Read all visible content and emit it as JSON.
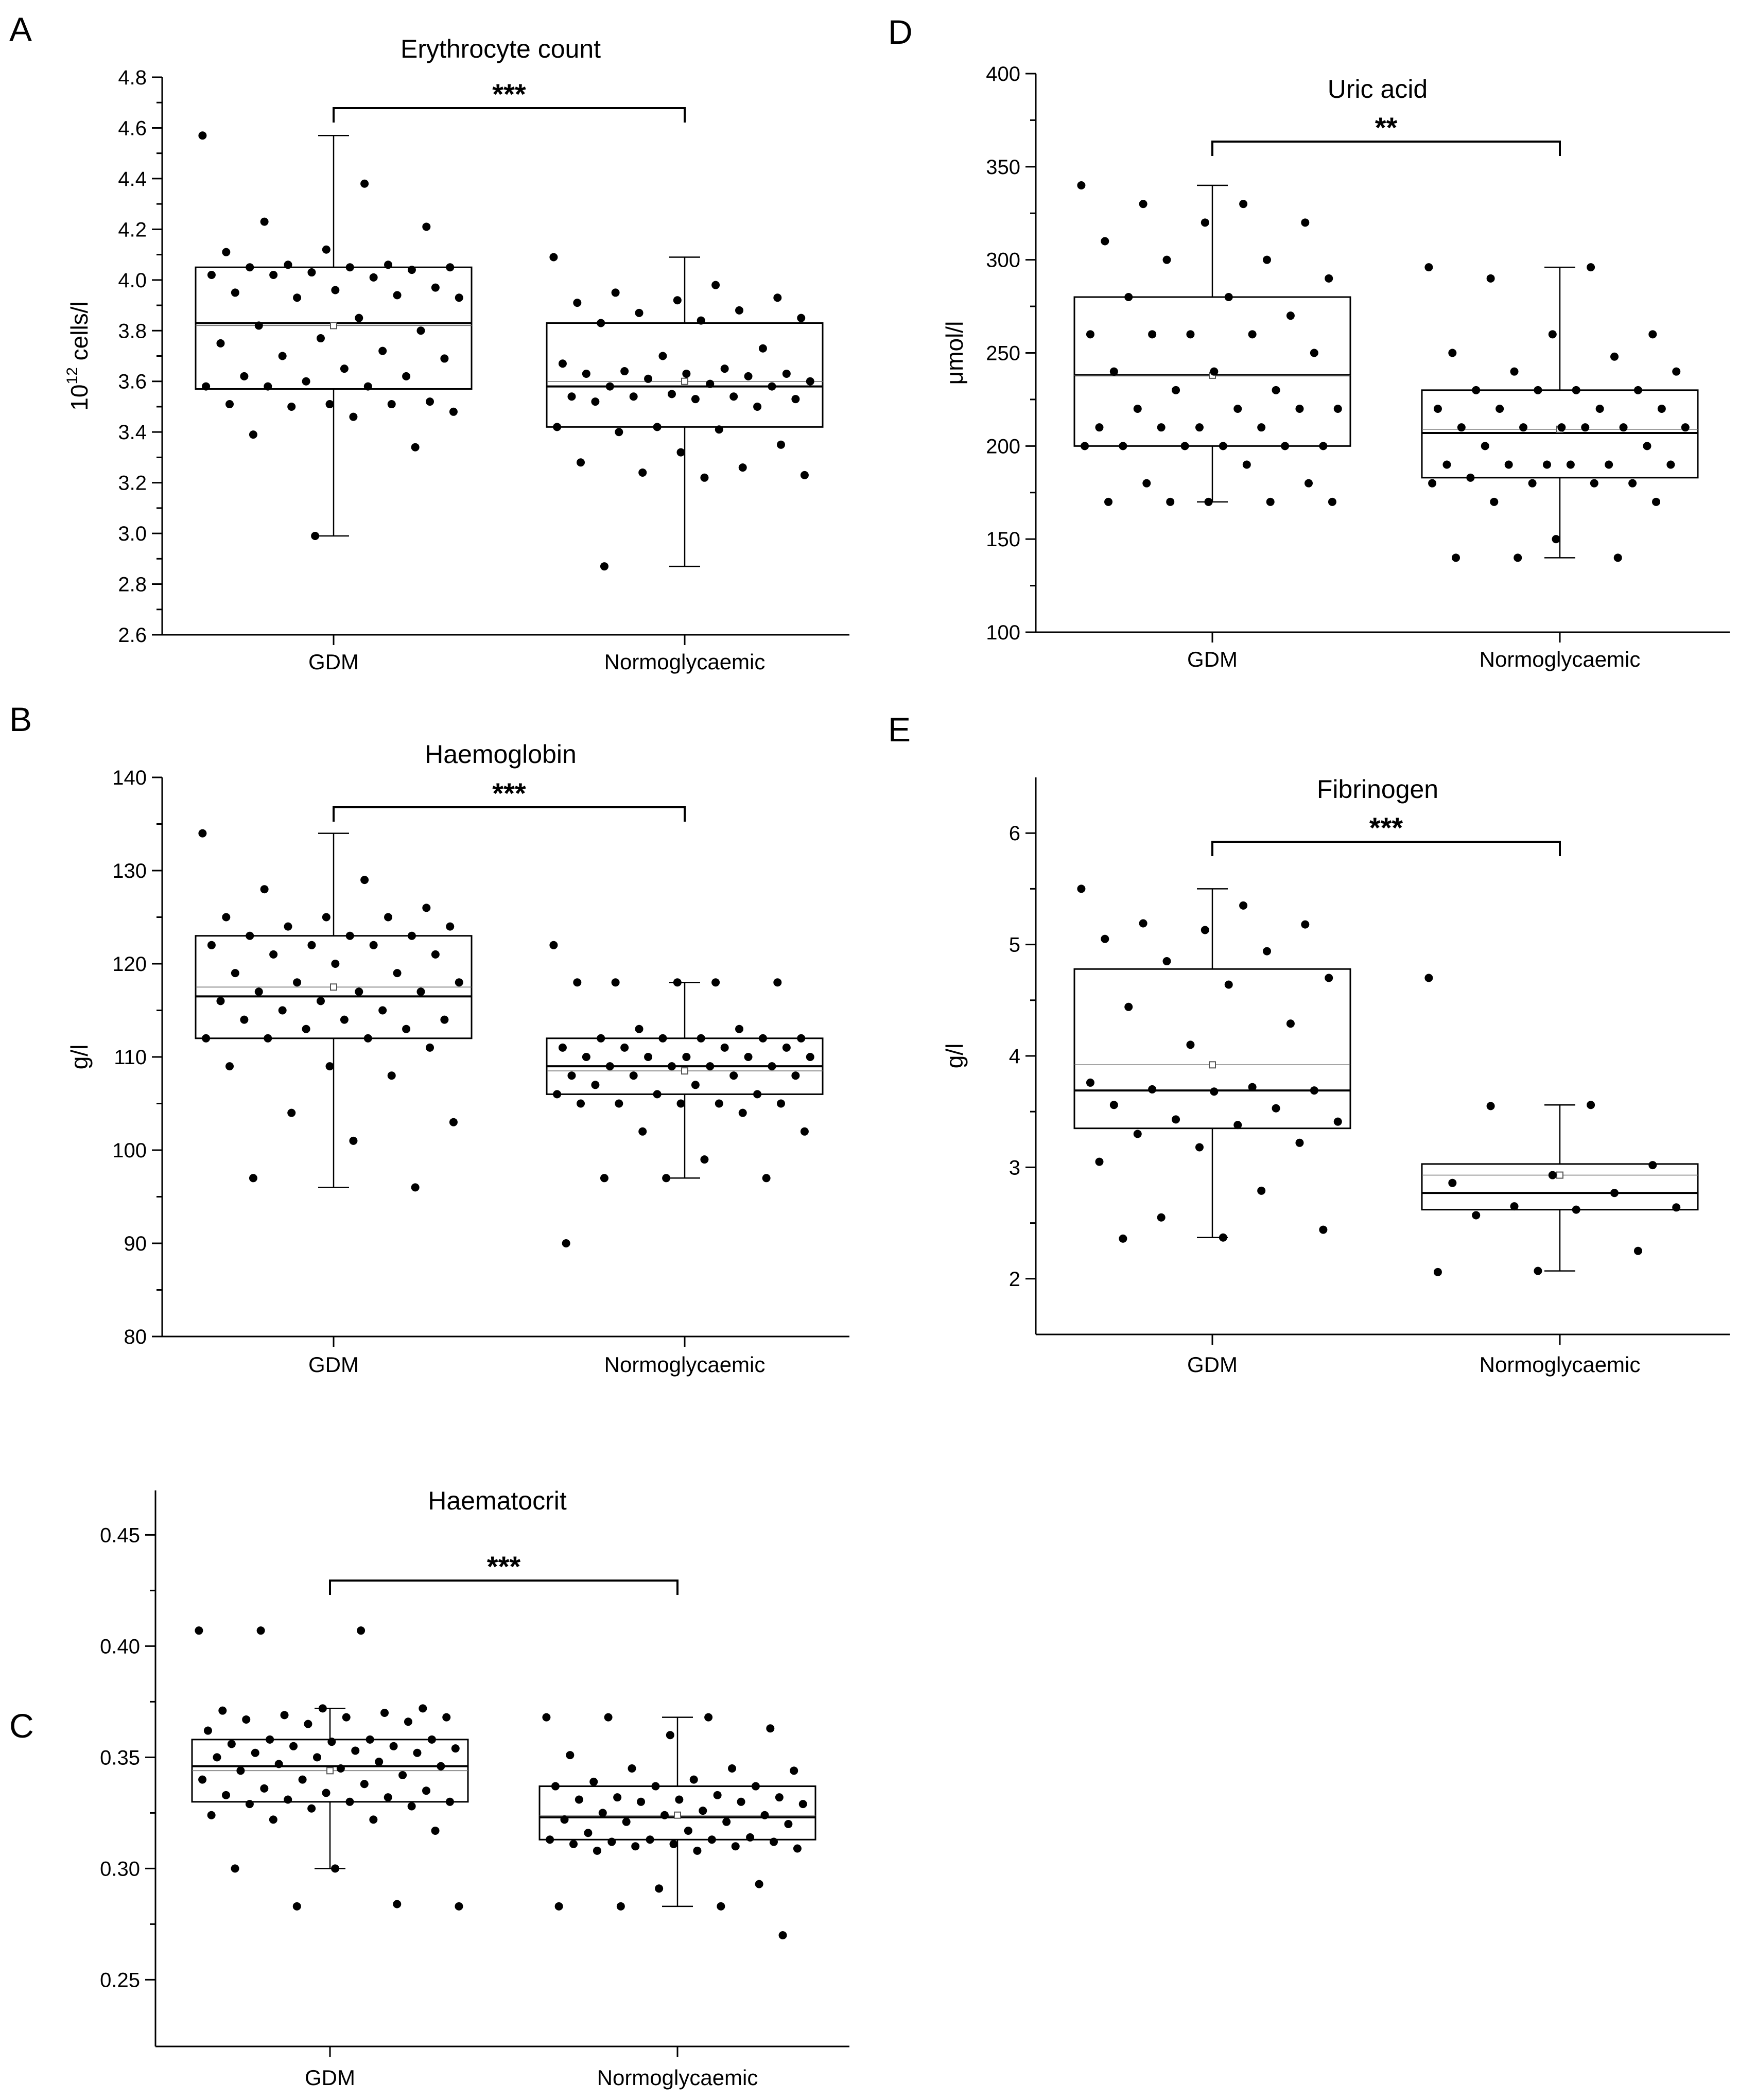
{
  "chart_data": [
    {
      "panel": "A",
      "type": "box",
      "title": "Erythrocyte count",
      "ylabel": "10¹² cells/l",
      "ylim": [
        2.6,
        4.8
      ],
      "yticks": [
        "2.6",
        "2.8",
        "3.0",
        "3.2",
        "3.4",
        "3.6",
        "3.8",
        "4.0",
        "4.2",
        "4.4",
        "4.6",
        "4.8"
      ],
      "categories": [
        "GDM",
        "Normoglycaemic"
      ],
      "significance": "***",
      "boxes": [
        {
          "q1": 3.57,
          "median": 3.83,
          "q3": 4.05,
          "mean": 3.82,
          "whisker_low": 2.99,
          "whisker_high": 4.57
        },
        {
          "q1": 3.42,
          "median": 3.58,
          "q3": 3.83,
          "mean": 3.6,
          "whisker_low": 2.87,
          "whisker_high": 4.09
        }
      ],
      "points": [
        [
          4.57,
          4.38,
          4.23,
          4.21,
          4.12,
          4.11,
          4.06,
          4.06,
          4.05,
          4.05,
          4.05,
          4.04,
          4.03,
          4.02,
          4.01,
          4.02,
          3.97,
          3.96,
          3.95,
          3.94,
          3.93,
          3.93,
          3.85,
          3.82,
          3.8,
          3.77,
          3.75,
          3.72,
          3.7,
          3.69,
          3.65,
          3.62,
          3.62,
          3.6,
          3.58,
          3.58,
          3.58,
          3.52,
          3.51,
          3.51,
          3.51,
          3.5,
          3.48,
          3.46,
          3.39,
          3.34,
          2.99
        ],
        [
          4.09,
          3.98,
          3.95,
          3.93,
          3.92,
          3.91,
          3.88,
          3.87,
          3.85,
          3.84,
          3.83,
          3.73,
          3.7,
          3.67,
          3.65,
          3.64,
          3.63,
          3.63,
          3.63,
          3.62,
          3.61,
          3.6,
          3.59,
          3.58,
          3.58,
          3.55,
          3.54,
          3.54,
          3.54,
          3.53,
          3.53,
          3.52,
          3.5,
          3.42,
          3.42,
          3.41,
          3.4,
          3.35,
          3.32,
          3.28,
          3.26,
          3.24,
          3.23,
          3.22,
          2.87
        ]
      ]
    },
    {
      "panel": "B",
      "type": "box",
      "title": "Haemoglobin",
      "ylabel": "g/l",
      "ylim": [
        80,
        140
      ],
      "yticks": [
        "80",
        "90",
        "100",
        "110",
        "120",
        "130",
        "140"
      ],
      "categories": [
        "GDM",
        "Normoglycaemic"
      ],
      "significance": "***",
      "boxes": [
        {
          "q1": 112,
          "median": 116.5,
          "q3": 123,
          "mean": 117.5,
          "whisker_low": 96,
          "whisker_high": 134
        },
        {
          "q1": 106,
          "median": 109,
          "q3": 112,
          "mean": 108.5,
          "whisker_low": 97,
          "whisker_high": 118
        }
      ],
      "points": [
        [
          134,
          129,
          128,
          126,
          125,
          125,
          125,
          124,
          124,
          123,
          123,
          123,
          122,
          122,
          122,
          121,
          121,
          120,
          119,
          119,
          118,
          118,
          117,
          117,
          117,
          116,
          116,
          115,
          115,
          114,
          114,
          114,
          113,
          113,
          112,
          112,
          112,
          111,
          109,
          109,
          108,
          104,
          103,
          101,
          97,
          96
        ],
        [
          122,
          118,
          118,
          118,
          118,
          118,
          113,
          113,
          112,
          112,
          112,
          112,
          112,
          111,
          111,
          111,
          111,
          110,
          110,
          110,
          110,
          110,
          109,
          109,
          109,
          109,
          108,
          108,
          108,
          108,
          107,
          107,
          106,
          106,
          106,
          105,
          105,
          105,
          105,
          105,
          104,
          102,
          102,
          99,
          97,
          97,
          97,
          90
        ]
      ]
    },
    {
      "panel": "C",
      "type": "box",
      "title": "Haematocrit",
      "ylabel": "",
      "ylim": [
        0.22,
        0.47
      ],
      "yticks": [
        "0.25",
        "0.30",
        "0.35",
        "0.40",
        "0.45"
      ],
      "categories": [
        "GDM",
        "Normoglycaemic"
      ],
      "significance": "***",
      "boxes": [
        {
          "q1": 0.33,
          "median": 0.346,
          "q3": 0.358,
          "mean": 0.344,
          "whisker_low": 0.3,
          "whisker_high": 0.372
        },
        {
          "q1": 0.313,
          "median": 0.323,
          "q3": 0.337,
          "mean": 0.324,
          "whisker_low": 0.283,
          "whisker_high": 0.368
        }
      ],
      "points": [
        [
          0.407,
          0.407,
          0.407,
          0.372,
          0.372,
          0.371,
          0.37,
          0.369,
          0.368,
          0.368,
          0.367,
          0.366,
          0.365,
          0.362,
          0.358,
          0.358,
          0.358,
          0.357,
          0.356,
          0.355,
          0.355,
          0.354,
          0.353,
          0.352,
          0.352,
          0.35,
          0.35,
          0.348,
          0.347,
          0.346,
          0.345,
          0.344,
          0.342,
          0.34,
          0.34,
          0.338,
          0.336,
          0.335,
          0.334,
          0.333,
          0.332,
          0.331,
          0.33,
          0.33,
          0.329,
          0.328,
          0.327,
          0.324,
          0.322,
          0.322,
          0.317,
          0.3,
          0.3,
          0.284,
          0.283,
          0.283
        ],
        [
          0.368,
          0.368,
          0.368,
          0.363,
          0.36,
          0.351,
          0.345,
          0.345,
          0.344,
          0.34,
          0.339,
          0.337,
          0.337,
          0.337,
          0.333,
          0.332,
          0.332,
          0.331,
          0.331,
          0.33,
          0.33,
          0.329,
          0.326,
          0.325,
          0.324,
          0.324,
          0.322,
          0.321,
          0.321,
          0.32,
          0.317,
          0.316,
          0.314,
          0.313,
          0.313,
          0.313,
          0.312,
          0.312,
          0.311,
          0.311,
          0.31,
          0.31,
          0.309,
          0.308,
          0.308,
          0.293,
          0.291,
          0.283,
          0.283,
          0.283,
          0.27
        ]
      ]
    },
    {
      "panel": "D",
      "type": "box",
      "title": "Uric acid",
      "ylabel": "μmol/l",
      "ylim": [
        100,
        400
      ],
      "yticks": [
        "100",
        "150",
        "200",
        "250",
        "300",
        "350",
        "400"
      ],
      "categories": [
        "GDM",
        "Normoglycaemic"
      ],
      "significance": "**",
      "boxes": [
        {
          "q1": 200,
          "median": 238,
          "q3": 280,
          "mean": 238,
          "whisker_low": 170,
          "whisker_high": 340
        },
        {
          "q1": 183,
          "median": 207,
          "q3": 230,
          "mean": 209,
          "whisker_low": 140,
          "whisker_high": 296
        }
      ],
      "points": [
        [
          340,
          330,
          330,
          320,
          320,
          310,
          300,
          300,
          290,
          280,
          280,
          270,
          260,
          260,
          260,
          260,
          250,
          240,
          240,
          230,
          230,
          220,
          220,
          220,
          220,
          210,
          210,
          210,
          210,
          200,
          200,
          200,
          200,
          200,
          200,
          190,
          180,
          180,
          170,
          170,
          170,
          170,
          170
        ],
        [
          296,
          296,
          290,
          260,
          260,
          250,
          248,
          240,
          240,
          230,
          230,
          230,
          230,
          220,
          220,
          220,
          220,
          210,
          210,
          210,
          210,
          210,
          210,
          200,
          200,
          190,
          190,
          190,
          190,
          190,
          190,
          183,
          180,
          180,
          180,
          180,
          170,
          170,
          150,
          140,
          140,
          140
        ]
      ]
    },
    {
      "panel": "E",
      "type": "box",
      "title": "Fibrinogen",
      "ylabel": "g/l",
      "ylim": [
        1.5,
        6.5
      ],
      "yticks": [
        "2",
        "3",
        "4",
        "5",
        "6"
      ],
      "categories": [
        "GDM",
        "Normoglycaemic"
      ],
      "significance": "***",
      "boxes": [
        {
          "q1": 3.35,
          "median": 3.69,
          "q3": 4.78,
          "mean": 3.92,
          "whisker_low": 2.37,
          "whisker_high": 5.5
        },
        {
          "q1": 2.62,
          "median": 2.77,
          "q3": 3.03,
          "mean": 2.93,
          "whisker_low": 2.07,
          "whisker_high": 3.56
        }
      ],
      "points": [
        [
          5.5,
          5.35,
          5.19,
          5.18,
          5.13,
          5.05,
          4.94,
          4.85,
          4.7,
          4.64,
          4.44,
          4.29,
          4.1,
          3.76,
          3.72,
          3.7,
          3.69,
          3.68,
          3.56,
          3.53,
          3.43,
          3.41,
          3.38,
          3.3,
          3.22,
          3.18,
          3.05,
          2.79,
          2.55,
          2.44,
          2.37,
          2.36
        ],
        [
          4.7,
          3.56,
          3.55,
          3.02,
          2.93,
          2.86,
          2.77,
          2.65,
          2.64,
          2.62,
          2.57,
          2.25,
          2.07,
          2.06
        ]
      ]
    }
  ]
}
